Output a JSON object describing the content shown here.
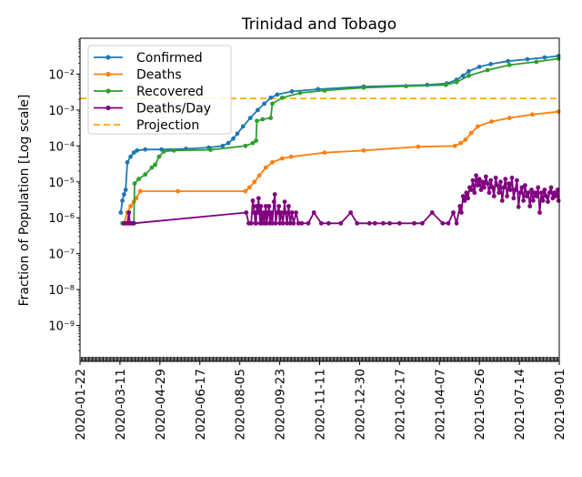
{
  "chart_data": {
    "type": "line",
    "title": "Trinidad and Tobago",
    "xlabel": "",
    "ylabel": "Fraction of Population [Log scale]",
    "yscale": "log",
    "ylim": [
      1e-10,
      0.1
    ],
    "x_start_date": "2020-01-22",
    "x_end_date": "2021-09-01",
    "x_unit": "days since 2020-01-22",
    "xlim": [
      0,
      588
    ],
    "x_ticks": [
      {
        "day": 0,
        "label": "2020-01-22"
      },
      {
        "day": 49,
        "label": "2020-03-11"
      },
      {
        "day": 98,
        "label": "2020-04-29"
      },
      {
        "day": 147,
        "label": "2020-06-17"
      },
      {
        "day": 196,
        "label": "2020-08-05"
      },
      {
        "day": 245,
        "label": "2020-09-23"
      },
      {
        "day": 294,
        "label": "2020-11-11"
      },
      {
        "day": 343,
        "label": "2020-12-30"
      },
      {
        "day": 392,
        "label": "2021-02-17"
      },
      {
        "day": 441,
        "label": "2021-04-07"
      },
      {
        "day": 490,
        "label": "2021-05-26"
      },
      {
        "day": 539,
        "label": "2021-07-14"
      },
      {
        "day": 588,
        "label": "2021-09-01"
      }
    ],
    "y_ticks": [
      {
        "value": 1e-09,
        "label": "10⁻⁹"
      },
      {
        "value": 1e-08,
        "label": "10⁻⁸"
      },
      {
        "value": 1e-07,
        "label": "10⁻⁷"
      },
      {
        "value": 1e-06,
        "label": "10⁻⁶"
      },
      {
        "value": 1e-05,
        "label": "10⁻⁵"
      },
      {
        "value": 0.0001,
        "label": "10⁻⁴"
      },
      {
        "value": 0.001,
        "label": "10⁻³"
      },
      {
        "value": 0.01,
        "label": "10⁻²"
      }
    ],
    "legend_position": "top-left",
    "series": [
      {
        "name": "Confirmed",
        "color": "#1f77b4",
        "points": [
          [
            50,
            1.4e-06
          ],
          [
            52,
            3e-06
          ],
          [
            54,
            4.5e-06
          ],
          [
            56,
            6e-06
          ],
          [
            58,
            3.5e-05
          ],
          [
            62,
            5e-05
          ],
          [
            66,
            6.5e-05
          ],
          [
            70,
            7.5e-05
          ],
          [
            80,
            8e-05
          ],
          [
            100,
            8e-05
          ],
          [
            130,
            8.3e-05
          ],
          [
            158,
            9e-05
          ],
          [
            175,
            0.0001
          ],
          [
            182,
            0.00012
          ],
          [
            188,
            0.00016
          ],
          [
            193,
            0.00022
          ],
          [
            200,
            0.00035
          ],
          [
            209,
            0.0006
          ],
          [
            218,
            0.001
          ],
          [
            226,
            0.0015
          ],
          [
            234,
            0.0022
          ],
          [
            242,
            0.0027
          ],
          [
            260,
            0.0033
          ],
          [
            292,
            0.0038
          ],
          [
            348,
            0.0045
          ],
          [
            426,
            0.005
          ],
          [
            450,
            0.0055
          ],
          [
            462,
            0.007
          ],
          [
            470,
            0.009
          ],
          [
            477,
            0.012
          ],
          [
            490,
            0.016
          ],
          [
            504,
            0.019
          ],
          [
            525,
            0.023
          ],
          [
            549,
            0.026
          ],
          [
            570,
            0.029
          ],
          [
            587,
            0.032
          ]
        ]
      },
      {
        "name": "Deaths",
        "color": "#ff7f0e",
        "points": [
          [
            54,
            7e-07
          ],
          [
            58,
            1.4e-06
          ],
          [
            62,
            2.1e-06
          ],
          [
            66,
            2.8e-06
          ],
          [
            69,
            3.5e-06
          ],
          [
            74,
            5.5e-06
          ],
          [
            120,
            5.5e-06
          ],
          [
            203,
            5.5e-06
          ],
          [
            208,
            7e-06
          ],
          [
            214,
            1e-05
          ],
          [
            220,
            1.5e-05
          ],
          [
            228,
            2.5e-05
          ],
          [
            236,
            3.5e-05
          ],
          [
            248,
            4.5e-05
          ],
          [
            259,
            5e-05
          ],
          [
            300,
            6.5e-05
          ],
          [
            348,
            7.5e-05
          ],
          [
            415,
            9.5e-05
          ],
          [
            460,
            0.0001
          ],
          [
            467,
            0.00012
          ],
          [
            473,
            0.00015
          ],
          [
            480,
            0.00023
          ],
          [
            488,
            0.00035
          ],
          [
            505,
            0.00048
          ],
          [
            527,
            0.0006
          ],
          [
            555,
            0.00075
          ],
          [
            587,
            0.0009
          ]
        ]
      },
      {
        "name": "Recovered",
        "color": "#2ca02c",
        "points": [
          [
            52,
            7e-07
          ],
          [
            60,
            7e-07
          ],
          [
            66,
            7e-07
          ],
          [
            67,
            9e-06
          ],
          [
            72,
            1.2e-05
          ],
          [
            80,
            1.6e-05
          ],
          [
            88,
            2.5e-05
          ],
          [
            92,
            3e-05
          ],
          [
            97,
            5e-05
          ],
          [
            103,
            7e-05
          ],
          [
            115,
            7.5e-05
          ],
          [
            160,
            7.8e-05
          ],
          [
            203,
            0.0001
          ],
          [
            212,
            0.00012
          ],
          [
            216,
            0.00014
          ],
          [
            217,
            0.0005
          ],
          [
            224,
            0.00055
          ],
          [
            234,
            0.0006
          ],
          [
            236,
            0.0015
          ],
          [
            248,
            0.0022
          ],
          [
            270,
            0.003
          ],
          [
            300,
            0.0035
          ],
          [
            348,
            0.0042
          ],
          [
            400,
            0.0046
          ],
          [
            449,
            0.005
          ],
          [
            462,
            0.006
          ],
          [
            477,
            0.009
          ],
          [
            500,
            0.013
          ],
          [
            527,
            0.018
          ],
          [
            560,
            0.022
          ],
          [
            587,
            0.027
          ]
        ]
      },
      {
        "name": "Deaths/Day",
        "color": "#800080",
        "points": [
          [
            54,
            7e-07
          ],
          [
            56,
            7e-07
          ],
          [
            58,
            7e-07
          ],
          [
            60,
            1.4e-06
          ],
          [
            61,
            7e-07
          ],
          [
            63,
            7e-07
          ],
          [
            64,
            7e-07
          ],
          [
            66,
            7e-07
          ],
          [
            204,
            1.4e-06
          ],
          [
            207,
            7e-07
          ],
          [
            210,
            7e-07
          ],
          [
            212,
            3e-06
          ],
          [
            213,
            2.1e-06
          ],
          [
            214,
            1.4e-06
          ],
          [
            215,
            7e-07
          ],
          [
            216,
            7e-07
          ],
          [
            217,
            2.1e-06
          ],
          [
            218,
            1.4e-06
          ],
          [
            219,
            3.5e-06
          ],
          [
            220,
            1.4e-06
          ],
          [
            221,
            7e-07
          ],
          [
            222,
            2.1e-06
          ],
          [
            223,
            7e-07
          ],
          [
            225,
            1.4e-06
          ],
          [
            226,
            7e-07
          ],
          [
            228,
            2.1e-06
          ],
          [
            229,
            7e-07
          ],
          [
            231,
            1.4e-06
          ],
          [
            232,
            2.1e-06
          ],
          [
            233,
            7e-07
          ],
          [
            235,
            1.4e-06
          ],
          [
            236,
            7e-07
          ],
          [
            238,
            2.8e-06
          ],
          [
            239,
            4.5e-06
          ],
          [
            240,
            7e-07
          ],
          [
            242,
            1.4e-06
          ],
          [
            244,
            2.1e-06
          ],
          [
            245,
            7e-07
          ],
          [
            247,
            1.4e-06
          ],
          [
            249,
            7e-07
          ],
          [
            251,
            2.8e-06
          ],
          [
            252,
            1.4e-06
          ],
          [
            254,
            7e-07
          ],
          [
            256,
            2.1e-06
          ],
          [
            258,
            7e-07
          ],
          [
            260,
            1.4e-06
          ],
          [
            262,
            7e-07
          ],
          [
            265,
            1.4e-06
          ],
          [
            268,
            7e-07
          ],
          [
            272,
            7e-07
          ],
          [
            280,
            7e-07
          ],
          [
            287,
            1.4e-06
          ],
          [
            296,
            7e-07
          ],
          [
            305,
            7e-07
          ],
          [
            320,
            7e-07
          ],
          [
            332,
            1.4e-06
          ],
          [
            340,
            7e-07
          ],
          [
            355,
            7e-07
          ],
          [
            362,
            7e-07
          ],
          [
            372,
            7e-07
          ],
          [
            380,
            7e-07
          ],
          [
            392,
            7e-07
          ],
          [
            410,
            7e-07
          ],
          [
            420,
            7e-07
          ],
          [
            432,
            1.4e-06
          ],
          [
            445,
            7e-07
          ],
          [
            452,
            7e-07
          ],
          [
            458,
            1.4e-06
          ],
          [
            462,
            7e-07
          ],
          [
            466,
            2.1e-06
          ],
          [
            468,
            1.4e-06
          ],
          [
            470,
            4e-06
          ],
          [
            472,
            3e-06
          ],
          [
            474,
            5e-06
          ],
          [
            476,
            3.5e-06
          ],
          [
            478,
            7e-06
          ],
          [
            480,
            6e-06
          ],
          [
            482,
            1.1e-05
          ],
          [
            484,
            5e-06
          ],
          [
            486,
            1.5e-05
          ],
          [
            488,
            8e-06
          ],
          [
            490,
            1.2e-05
          ],
          [
            492,
            6e-06
          ],
          [
            494,
            1e-05
          ],
          [
            496,
            7e-06
          ],
          [
            498,
            1.4e-05
          ],
          [
            500,
            9e-06
          ],
          [
            502,
            5e-06
          ],
          [
            504,
            1.1e-05
          ],
          [
            506,
            7e-06
          ],
          [
            508,
            4e-06
          ],
          [
            510,
            1.3e-05
          ],
          [
            512,
            8e-06
          ],
          [
            514,
            5e-06
          ],
          [
            516,
            1e-05
          ],
          [
            518,
            3e-06
          ],
          [
            520,
            7e-06
          ],
          [
            522,
            1.2e-05
          ],
          [
            524,
            4e-06
          ],
          [
            526,
            9e-06
          ],
          [
            528,
            6e-06
          ],
          [
            530,
            1.3e-05
          ],
          [
            532,
            3.5e-06
          ],
          [
            534,
            6e-06
          ],
          [
            536,
            1.1e-05
          ],
          [
            538,
            2e-06
          ],
          [
            540,
            5e-06
          ],
          [
            542,
            7e-06
          ],
          [
            544,
            3e-06
          ],
          [
            546,
            8e-06
          ],
          [
            548,
            4e-06
          ],
          [
            550,
            5e-06
          ],
          [
            552,
            2.1e-06
          ],
          [
            554,
            6e-06
          ],
          [
            556,
            3e-06
          ],
          [
            558,
            5e-06
          ],
          [
            560,
            4e-06
          ],
          [
            562,
            7e-06
          ],
          [
            564,
            1.4e-06
          ],
          [
            566,
            5e-06
          ],
          [
            568,
            3e-06
          ],
          [
            570,
            6e-06
          ],
          [
            572,
            4e-06
          ],
          [
            574,
            2.8e-06
          ],
          [
            576,
            5e-06
          ],
          [
            578,
            7e-06
          ],
          [
            580,
            3.5e-06
          ],
          [
            582,
            5e-06
          ],
          [
            584,
            4e-06
          ],
          [
            586,
            6e-06
          ],
          [
            587,
            3e-06
          ]
        ]
      }
    ],
    "reference_lines": [
      {
        "name": "Projection",
        "value": 0.0021,
        "color": "#ffa500",
        "style": "dashed"
      }
    ]
  }
}
